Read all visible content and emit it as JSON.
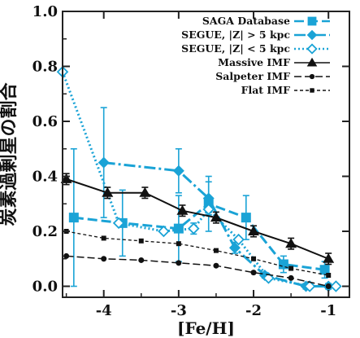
{
  "chart_data": {
    "type": "line",
    "xlabel": "[Fe/H]",
    "ylabel": "炭素過剰星の割合",
    "xlim": [
      -4.55,
      -0.72
    ],
    "ylim": [
      -0.04,
      1.0
    ],
    "x_ticks": [
      -4,
      -3,
      -2,
      -1
    ],
    "x_tick_labels": [
      "-4",
      "-3",
      "-2",
      "-1"
    ],
    "y_ticks": [
      0.0,
      0.2,
      0.4,
      0.6,
      0.8,
      1.0
    ],
    "y_tick_labels": [
      "0.0",
      "0.2",
      "0.4",
      "0.6",
      "0.8",
      "1.0"
    ],
    "legend_position": "top-right",
    "colors": {
      "cyan": "#1aa3d6",
      "black": "#111111",
      "frame": "#222222"
    },
    "series": [
      {
        "name": "SAGA Database",
        "style": "dashed",
        "marker": "square",
        "color": "#1aa3d6",
        "x": [
          -4.4,
          -3.75,
          -3.0,
          -2.6,
          -2.1,
          -1.6,
          -1.05
        ],
        "y": [
          0.25,
          0.23,
          0.21,
          0.3,
          0.25,
          0.08,
          0.06
        ],
        "err": [
          0.25,
          0.12,
          0.12,
          0.1,
          0.08,
          0.03,
          0.03
        ]
      },
      {
        "name": "SEGUE, |Z| > 5 kpc",
        "style": "dashdot",
        "marker": "diamond",
        "color": "#1aa3d6",
        "x": [
          -4.0,
          -3.0,
          -2.6,
          -2.25,
          -1.85,
          -1.3,
          -1.0
        ],
        "y": [
          0.45,
          0.42,
          0.32,
          0.14,
          0.04,
          0.0,
          0.0
        ],
        "err": [
          0.2,
          0.08,
          0.06,
          0.02,
          0.01,
          0.01,
          0.01
        ]
      },
      {
        "name": "SEGUE, |Z| < 5 kpc",
        "style": "dotted",
        "marker": "diamond-open",
        "color": "#1aa3d6",
        "x": [
          -4.55,
          -3.8,
          -3.2,
          -2.8,
          -2.6,
          -2.2,
          -1.8,
          -1.25,
          -0.9
        ],
        "y": [
          0.78,
          0.23,
          0.2,
          0.21,
          0.28,
          0.17,
          0.03,
          0.0,
          0.0
        ],
        "err": [
          0,
          0,
          0,
          0.02,
          0.02,
          0,
          0,
          0,
          0
        ]
      },
      {
        "name": "Massive IMF",
        "style": "solid",
        "marker": "triangle",
        "color": "#111111",
        "x": [
          -4.5,
          -3.95,
          -3.45,
          -2.95,
          -2.5,
          -2.0,
          -1.5,
          -1.0
        ],
        "y": [
          0.39,
          0.34,
          0.34,
          0.275,
          0.25,
          0.2,
          0.155,
          0.1
        ],
        "err": [
          0.02,
          0.02,
          0.02,
          0.02,
          0.02,
          0.02,
          0.02,
          0.02
        ]
      },
      {
        "name": "Salpeter IMF",
        "style": "longdash",
        "marker": "circle",
        "color": "#111111",
        "x": [
          -4.5,
          -4.0,
          -3.5,
          -3.0,
          -2.5,
          -2.0,
          -1.5,
          -1.0
        ],
        "y": [
          0.11,
          0.1,
          0.095,
          0.085,
          0.075,
          0.05,
          0.03,
          0.0
        ],
        "err": [
          0,
          0,
          0,
          0,
          0,
          0,
          0,
          0
        ]
      },
      {
        "name": "Flat IMF",
        "style": "shortdash",
        "marker": "small-square",
        "color": "#111111",
        "x": [
          -4.5,
          -4.0,
          -3.5,
          -3.0,
          -2.5,
          -2.0,
          -1.5,
          -1.0
        ],
        "y": [
          0.2,
          0.175,
          0.165,
          0.155,
          0.13,
          0.1,
          0.065,
          0.04
        ],
        "err": [
          0,
          0,
          0,
          0,
          0,
          0,
          0,
          0
        ]
      }
    ]
  }
}
